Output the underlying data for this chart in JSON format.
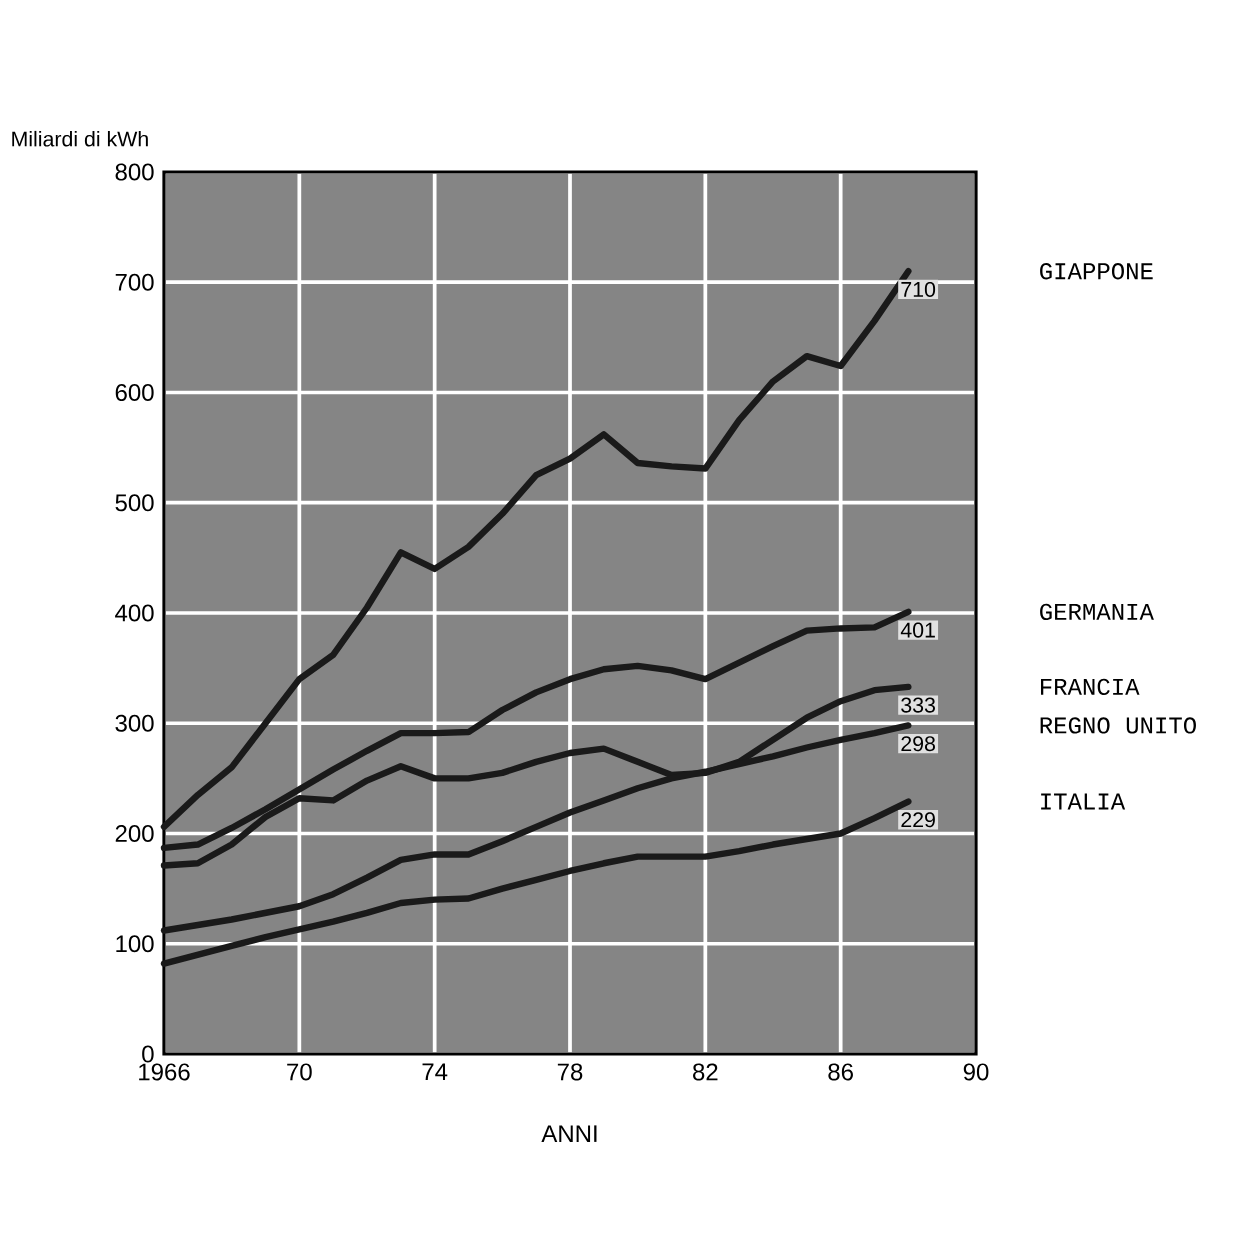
{
  "chart_data": {
    "type": "line",
    "xlabel": "ANNI",
    "ylabel": "Miliardi di kWh",
    "x": [
      1966,
      1967,
      1968,
      1969,
      1970,
      1971,
      1972,
      1973,
      1974,
      1975,
      1976,
      1977,
      1978,
      1979,
      1980,
      1981,
      1982,
      1983,
      1984,
      1985,
      1986,
      1987,
      1988
    ],
    "series": [
      {
        "name": "GIAPPONE",
        "color": "#1a1a1a",
        "values": [
          206,
          235,
          260,
          300,
          340,
          362,
          405,
          455,
          440,
          460,
          490,
          525,
          540,
          562,
          536,
          533,
          531,
          575,
          610,
          633,
          624,
          665,
          710
        ],
        "value_labels": [
          null,
          null,
          null,
          null,
          null,
          null,
          null,
          null,
          null,
          null,
          null,
          null,
          null,
          null,
          null,
          null,
          null,
          null,
          null,
          null,
          null,
          null,
          "710"
        ]
      },
      {
        "name": "GERMANIA",
        "color": "#1a1a1a",
        "values": [
          187,
          190,
          205,
          222,
          240,
          258,
          275,
          291,
          291,
          292,
          312,
          328,
          340,
          349,
          352,
          348,
          340,
          355,
          370,
          384,
          386,
          387,
          401
        ],
        "value_labels": [
          null,
          null,
          null,
          null,
          null,
          null,
          null,
          null,
          null,
          null,
          null,
          null,
          null,
          null,
          null,
          null,
          null,
          null,
          null,
          null,
          null,
          null,
          "401"
        ]
      },
      {
        "name": "FRANCIA",
        "color": "#1a1a1a",
        "values": [
          171,
          173,
          190,
          215,
          232,
          230,
          248,
          261,
          250,
          250,
          255,
          265,
          273,
          277,
          265,
          253,
          255,
          265,
          285,
          305,
          320,
          330,
          333
        ],
        "value_labels": [
          null,
          null,
          null,
          null,
          null,
          null,
          null,
          null,
          null,
          null,
          null,
          null,
          null,
          null,
          null,
          null,
          null,
          null,
          null,
          null,
          null,
          null,
          "333"
        ]
      },
      {
        "name": "REGNO UNITO",
        "color": "#1a1a1a",
        "values": [
          112,
          117,
          122,
          128,
          134,
          145,
          160,
          176,
          181,
          181,
          193,
          206,
          219,
          230,
          241,
          250,
          256,
          263,
          270,
          278,
          285,
          291,
          298
        ],
        "value_labels": [
          null,
          null,
          null,
          null,
          null,
          null,
          null,
          null,
          null,
          null,
          null,
          null,
          null,
          null,
          null,
          null,
          null,
          null,
          null,
          null,
          null,
          null,
          "298"
        ]
      },
      {
        "name": "ITALIA",
        "color": "#1a1a1a",
        "values": [
          82,
          90,
          98,
          106,
          113,
          120,
          128,
          137,
          140,
          141,
          150,
          158,
          166,
          173,
          179,
          179,
          179,
          184,
          190,
          195,
          200,
          214,
          229
        ],
        "value_labels": [
          null,
          null,
          null,
          null,
          null,
          null,
          null,
          null,
          null,
          null,
          null,
          null,
          null,
          null,
          null,
          null,
          null,
          null,
          null,
          null,
          null,
          null,
          "229"
        ]
      }
    ],
    "xlim": [
      1966,
      1990
    ],
    "ylim": [
      0,
      800
    ],
    "xticks": [
      {
        "value": 1966,
        "label": "1966"
      },
      {
        "value": 1970,
        "label": "70"
      },
      {
        "value": 1974,
        "label": "74"
      },
      {
        "value": 1978,
        "label": "78"
      },
      {
        "value": 1982,
        "label": "82"
      },
      {
        "value": 1986,
        "label": "86"
      },
      {
        "value": 1990,
        "label": "90"
      }
    ],
    "yticks": [
      0,
      100,
      200,
      300,
      400,
      500,
      600,
      700,
      800
    ],
    "grid": true,
    "legend": false,
    "line_style": "solid",
    "marker": "none"
  }
}
